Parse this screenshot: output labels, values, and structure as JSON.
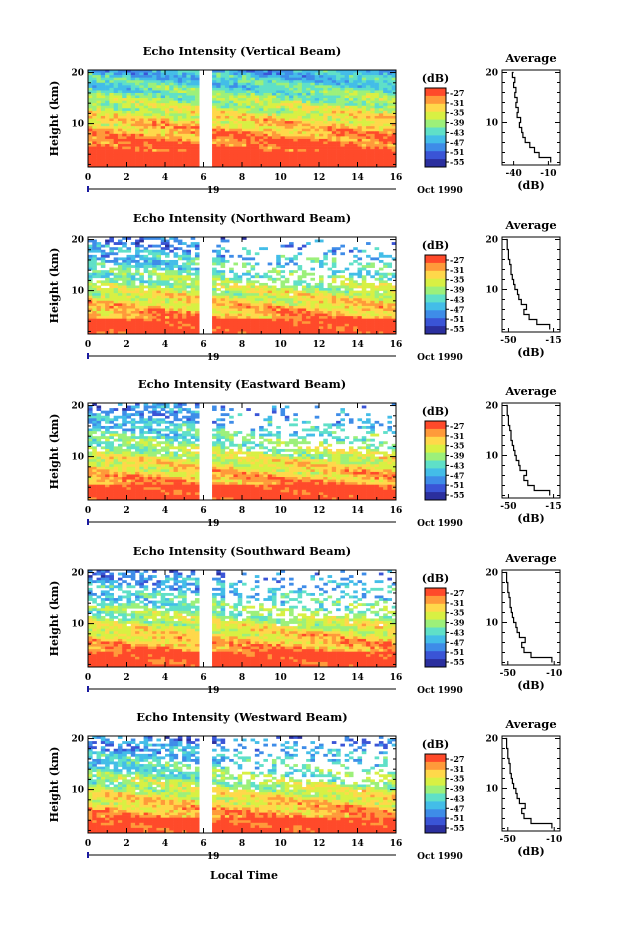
{
  "figure": {
    "common_xlabel": "Local Time",
    "date_label": "Oct 1990",
    "day_label": "19",
    "colorbar_unit": "(dB)",
    "colorbar_ticks": [
      "-27",
      "-31",
      "-35",
      "-39",
      "-43",
      "-47",
      "-51",
      "-55"
    ],
    "colormap": [
      "#2b2f9e",
      "#3a54d6",
      "#3e8ce8",
      "#43bde8",
      "#5fe0c8",
      "#9cf07a",
      "#d8f043",
      "#ffd84a",
      "#ff9a3a",
      "#ff4a2a"
    ]
  },
  "chart_data": [
    {
      "type": "heatmap",
      "title": "Echo Intensity (Vertical Beam)",
      "ylabel": "Height (km)",
      "x_ticks": [
        "0",
        "2",
        "4",
        "6",
        "8",
        "10",
        "12",
        "14",
        "16"
      ],
      "y_ticks": [
        "10",
        "20"
      ],
      "xlim": [
        0,
        16
      ],
      "ylim": [
        1.5,
        20.5
      ],
      "data_gap_hours": [
        5.75,
        6.4
      ],
      "profile": {
        "title": "Average",
        "xlabel": "(dB)",
        "x_ticks": [
          "-40",
          "-10"
        ],
        "xlim": [
          -50,
          0
        ],
        "y_ticks": [
          "10",
          "20"
        ],
        "heights": [
          2,
          3,
          4,
          5,
          6,
          7,
          8,
          9,
          10,
          11,
          12,
          13,
          14,
          15,
          16,
          17,
          18,
          19,
          20
        ],
        "values": [
          -8,
          -18,
          -22,
          -26,
          -30,
          -32,
          -33,
          -35,
          -34,
          -37,
          -36,
          -38,
          -37,
          -39,
          -38,
          -40,
          -39,
          -41,
          -40
        ]
      }
    },
    {
      "type": "heatmap",
      "title": "Echo Intensity (Northward Beam)",
      "ylabel": "Height (km)",
      "x_ticks": [
        "0",
        "2",
        "4",
        "6",
        "8",
        "10",
        "12",
        "14",
        "16"
      ],
      "y_ticks": [
        "10",
        "20"
      ],
      "xlim": [
        0,
        16
      ],
      "ylim": [
        1.5,
        20.5
      ],
      "data_gap_hours": [
        5.75,
        6.4
      ],
      "profile": {
        "title": "Average",
        "xlabel": "(dB)",
        "x_ticks": [
          "-50",
          "-15"
        ],
        "xlim": [
          -55,
          -10
        ],
        "y_ticks": [
          "10",
          "20"
        ],
        "heights": [
          2,
          3,
          4,
          5,
          6,
          7,
          8,
          9,
          10,
          11,
          12,
          13,
          14,
          15,
          16,
          17,
          18,
          19,
          20
        ],
        "values": [
          -18,
          -28,
          -34,
          -38,
          -36,
          -40,
          -42,
          -43,
          -45,
          -46,
          -47,
          -48,
          -48,
          -49,
          -50,
          -50,
          -51,
          -51,
          -52
        ]
      }
    },
    {
      "type": "heatmap",
      "title": "Echo Intensity (Eastward Beam)",
      "ylabel": "Height (km)",
      "x_ticks": [
        "0",
        "2",
        "4",
        "6",
        "8",
        "10",
        "12",
        "14",
        "16"
      ],
      "y_ticks": [
        "10",
        "20"
      ],
      "xlim": [
        0,
        16
      ],
      "ylim": [
        1.5,
        20.5
      ],
      "data_gap_hours": [
        5.75,
        6.4
      ],
      "profile": {
        "title": "Average",
        "xlabel": "(dB)",
        "x_ticks": [
          "-50",
          "-15"
        ],
        "xlim": [
          -55,
          -10
        ],
        "y_ticks": [
          "10",
          "20"
        ],
        "heights": [
          2,
          3,
          4,
          5,
          6,
          7,
          8,
          9,
          10,
          11,
          12,
          13,
          14,
          15,
          16,
          17,
          18,
          19,
          20
        ],
        "values": [
          -18,
          -30,
          -35,
          -38,
          -36,
          -41,
          -42,
          -44,
          -45,
          -46,
          -47,
          -48,
          -48,
          -49,
          -50,
          -50,
          -51,
          -51,
          -52
        ]
      }
    },
    {
      "type": "heatmap",
      "title": "Echo Intensity (Southward Beam)",
      "ylabel": "Height (km)",
      "x_ticks": [
        "0",
        "2",
        "4",
        "6",
        "8",
        "10",
        "12",
        "14",
        "16"
      ],
      "y_ticks": [
        "10",
        "20"
      ],
      "xlim": [
        0,
        16
      ],
      "ylim": [
        1.5,
        20.5
      ],
      "data_gap_hours": [
        5.75,
        6.4
      ],
      "profile": {
        "title": "Average",
        "xlabel": "(dB)",
        "x_ticks": [
          "-50",
          "-10"
        ],
        "xlim": [
          -55,
          -5
        ],
        "y_ticks": [
          "10",
          "20"
        ],
        "heights": [
          2,
          3,
          4,
          5,
          6,
          7,
          8,
          9,
          10,
          11,
          12,
          13,
          14,
          15,
          16,
          17,
          18,
          19,
          20
        ],
        "values": [
          -12,
          -30,
          -36,
          -38,
          -35,
          -40,
          -42,
          -43,
          -45,
          -46,
          -47,
          -48,
          -48,
          -49,
          -50,
          -50,
          -51,
          -51,
          -52
        ]
      }
    },
    {
      "type": "heatmap",
      "title": "Echo Intensity (Westward Beam)",
      "ylabel": "Height (km)",
      "x_ticks": [
        "0",
        "2",
        "4",
        "6",
        "8",
        "10",
        "12",
        "14",
        "16"
      ],
      "y_ticks": [
        "10",
        "20"
      ],
      "xlim": [
        0,
        16
      ],
      "ylim": [
        1.5,
        20.5
      ],
      "data_gap_hours": [
        5.75,
        6.4
      ],
      "profile": {
        "title": "Average",
        "xlabel": "(dB)",
        "x_ticks": [
          "-50",
          "-10"
        ],
        "xlim": [
          -55,
          -5
        ],
        "y_ticks": [
          "10",
          "20"
        ],
        "heights": [
          2,
          3,
          4,
          5,
          6,
          7,
          8,
          9,
          10,
          11,
          12,
          13,
          14,
          15,
          16,
          17,
          18,
          19,
          20
        ],
        "values": [
          -12,
          -30,
          -36,
          -38,
          -35,
          -40,
          -42,
          -43,
          -45,
          -46,
          -47,
          -48,
          -48,
          -49,
          -50,
          -50,
          -51,
          -51,
          -52
        ]
      }
    }
  ]
}
